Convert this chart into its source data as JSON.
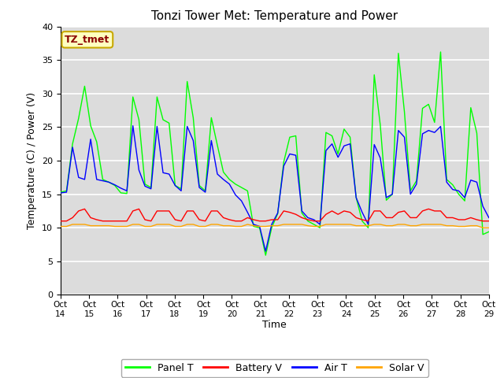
{
  "title": "Tonzi Tower Met: Temperature and Power",
  "xlabel": "Time",
  "ylabel": "Temperature (C) / Power (V)",
  "ylim": [
    0,
    40
  ],
  "yticks": [
    0,
    5,
    10,
    15,
    20,
    25,
    30,
    35,
    40
  ],
  "xtick_labels": [
    "Oct 14",
    "Oct 15",
    "Oct 16",
    "Oct 17",
    "Oct 18",
    "Oct 19",
    "Oct 20",
    "Oct 21",
    "Oct 22",
    "Oct 23",
    "Oct 24",
    "Oct 25",
    "Oct 26",
    "Oct 27",
    "Oct 28",
    "Oct 29"
  ],
  "annotation_text": "TZ_tmet",
  "annotation_color": "#8B0000",
  "annotation_bg": "#FFFFC0",
  "bg_color": "#DCDCDC",
  "panel_t_color": "#00FF00",
  "battery_v_color": "#FF0000",
  "air_t_color": "#0000FF",
  "solar_v_color": "#FFA500",
  "legend_labels": [
    "Panel T",
    "Battery V",
    "Air T",
    "Solar V"
  ],
  "panel_t": [
    15.3,
    15.5,
    22.5,
    26.3,
    31.1,
    25.2,
    22.8,
    17.2,
    16.8,
    16.3,
    15.2,
    15.1,
    29.5,
    26.1,
    16.5,
    16.0,
    29.5,
    26.1,
    25.6,
    16.3,
    15.8,
    31.8,
    26.4,
    16.3,
    15.5,
    26.4,
    22.3,
    18.3,
    17.2,
    16.5,
    16.0,
    15.5,
    10.2,
    10.0,
    5.9,
    10.0,
    12.1,
    19.8,
    23.5,
    23.7,
    12.2,
    11.0,
    10.5,
    10.0,
    24.2,
    23.7,
    21.0,
    24.7,
    23.5,
    14.5,
    11.0,
    10.0,
    32.8,
    25.3,
    14.1,
    15.0,
    36.0,
    27.3,
    15.5,
    17.0,
    27.8,
    28.4,
    25.7,
    36.2,
    17.2,
    16.4,
    15.0,
    14.0,
    27.9,
    24.1,
    9.0,
    9.4
  ],
  "air_t": [
    15.2,
    15.3,
    22.0,
    17.5,
    17.2,
    23.2,
    17.2,
    17.0,
    16.8,
    16.4,
    15.9,
    15.5,
    25.2,
    18.6,
    16.2,
    15.8,
    25.1,
    18.2,
    18.0,
    16.3,
    15.5,
    25.1,
    23.0,
    16.0,
    15.3,
    23.0,
    18.0,
    17.2,
    16.5,
    14.9,
    14.0,
    12.3,
    10.5,
    10.2,
    6.5,
    10.5,
    12.2,
    19.2,
    21.0,
    20.8,
    12.5,
    11.5,
    11.2,
    10.5,
    21.5,
    22.5,
    20.5,
    22.2,
    22.5,
    14.5,
    12.3,
    10.5,
    22.4,
    20.4,
    14.5,
    15.0,
    24.5,
    23.5,
    15.0,
    16.5,
    24.0,
    24.5,
    24.2,
    25.1,
    16.8,
    15.7,
    15.5,
    14.5,
    17.1,
    16.8,
    13.2,
    11.5
  ],
  "battery_v": [
    11.0,
    11.0,
    11.5,
    12.5,
    12.8,
    11.5,
    11.2,
    11.0,
    11.0,
    11.0,
    11.0,
    11.0,
    12.5,
    12.8,
    11.2,
    11.0,
    12.5,
    12.5,
    12.5,
    11.2,
    11.0,
    12.5,
    12.5,
    11.2,
    11.0,
    12.5,
    12.5,
    11.5,
    11.2,
    11.0,
    11.0,
    11.5,
    11.2,
    11.0,
    11.0,
    11.2,
    11.2,
    12.5,
    12.3,
    12.0,
    11.5,
    11.2,
    11.0,
    11.0,
    12.0,
    12.5,
    12.0,
    12.5,
    12.3,
    11.5,
    11.2,
    11.0,
    12.5,
    12.5,
    11.5,
    11.5,
    12.3,
    12.5,
    11.5,
    11.5,
    12.5,
    12.8,
    12.5,
    12.5,
    11.5,
    11.5,
    11.2,
    11.2,
    11.5,
    11.2,
    11.0,
    11.0
  ],
  "solar_v": [
    10.2,
    10.2,
    10.5,
    10.5,
    10.5,
    10.3,
    10.3,
    10.3,
    10.3,
    10.2,
    10.2,
    10.2,
    10.5,
    10.5,
    10.2,
    10.2,
    10.5,
    10.5,
    10.5,
    10.2,
    10.2,
    10.5,
    10.5,
    10.2,
    10.2,
    10.5,
    10.5,
    10.3,
    10.3,
    10.2,
    10.2,
    10.5,
    10.3,
    10.2,
    10.2,
    10.3,
    10.3,
    10.5,
    10.5,
    10.5,
    10.5,
    10.3,
    10.2,
    10.2,
    10.5,
    10.5,
    10.5,
    10.5,
    10.5,
    10.3,
    10.3,
    10.3,
    10.5,
    10.5,
    10.3,
    10.3,
    10.5,
    10.5,
    10.3,
    10.3,
    10.5,
    10.5,
    10.5,
    10.5,
    10.3,
    10.3,
    10.2,
    10.2,
    10.3,
    10.3,
    10.0,
    10.0
  ]
}
